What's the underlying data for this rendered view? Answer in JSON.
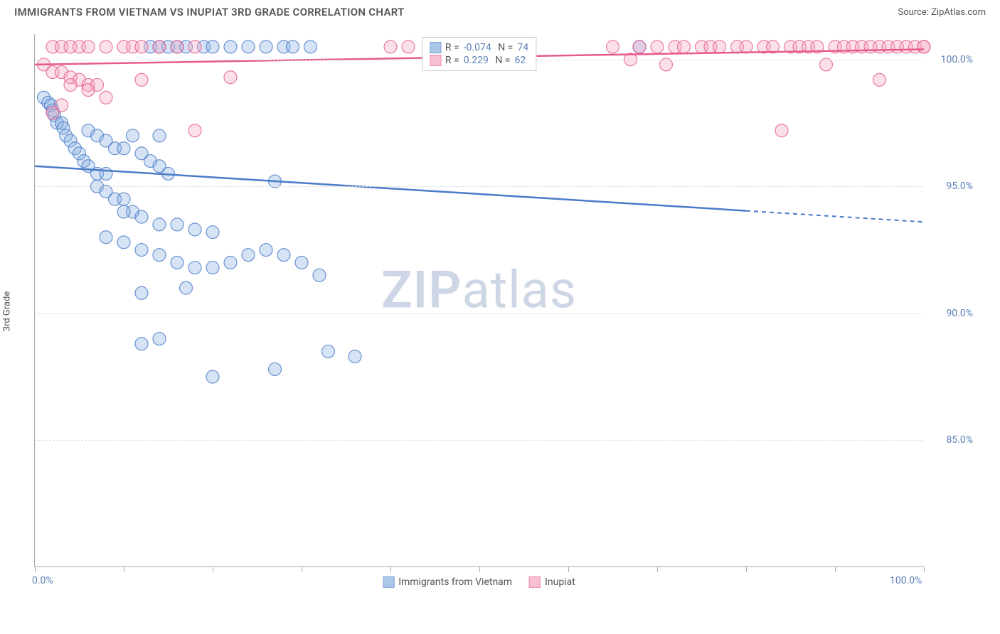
{
  "header": {
    "title": "IMMIGRANTS FROM VIETNAM VS INUPIAT 3RD GRADE CORRELATION CHART",
    "source": "Source: ZipAtlas.com"
  },
  "watermark": {
    "bold": "ZIP",
    "light": "atlas"
  },
  "chart": {
    "type": "scatter",
    "ylabel": "3rd Grade",
    "xlim": [
      0,
      100
    ],
    "ylim": [
      80,
      101
    ],
    "x_ticks": [
      0,
      10,
      20,
      30,
      40,
      50,
      60,
      70,
      80,
      90,
      100
    ],
    "y_gridlines": [
      85,
      90,
      95,
      100
    ],
    "y_tick_labels": [
      "85.0%",
      "90.0%",
      "95.0%",
      "100.0%"
    ],
    "x_axis_labels": [
      {
        "pos": 0,
        "text": "0.0%"
      },
      {
        "pos": 100,
        "text": "100.0%"
      }
    ],
    "background_color": "#ffffff",
    "grid_color": "#dddddd",
    "axis_color": "#aaaaaa",
    "label_color": "#5b7fb8",
    "marker_radius": 9,
    "marker_opacity": 0.35,
    "marker_stroke_opacity": 0.8,
    "series": [
      {
        "name": "Immigrants from Vietnam",
        "color_fill": "#87aee0",
        "color_stroke": "#4a7bc8",
        "R": "-0.074",
        "N": "74",
        "trend": {
          "y_start": 95.8,
          "y_end": 93.6,
          "solid_until_x": 80
        },
        "points": [
          [
            1,
            98.5
          ],
          [
            1.5,
            98.3
          ],
          [
            1.8,
            98.2
          ],
          [
            2,
            98.0
          ],
          [
            2.2,
            97.8
          ],
          [
            2.5,
            97.5
          ],
          [
            3,
            97.5
          ],
          [
            3.2,
            97.3
          ],
          [
            3.5,
            97.0
          ],
          [
            4,
            96.8
          ],
          [
            4.5,
            96.5
          ],
          [
            5,
            96.3
          ],
          [
            5.5,
            96.0
          ],
          [
            6,
            95.8
          ],
          [
            7,
            95.5
          ],
          [
            8,
            95.5
          ],
          [
            7,
            95.0
          ],
          [
            8,
            94.8
          ],
          [
            9,
            94.5
          ],
          [
            10,
            94.5
          ],
          [
            11,
            94.0
          ],
          [
            6,
            97.2
          ],
          [
            7,
            97.0
          ],
          [
            8,
            96.8
          ],
          [
            9,
            96.5
          ],
          [
            10,
            96.5
          ],
          [
            12,
            96.3
          ],
          [
            13,
            96.0
          ],
          [
            14,
            95.8
          ],
          [
            15,
            95.5
          ],
          [
            11,
            97.0
          ],
          [
            13,
            100.5
          ],
          [
            14,
            100.5
          ],
          [
            15,
            100.5
          ],
          [
            16,
            100.5
          ],
          [
            17,
            100.5
          ],
          [
            19,
            100.5
          ],
          [
            20,
            100.5
          ],
          [
            22,
            100.5
          ],
          [
            24,
            100.5
          ],
          [
            26,
            100.5
          ],
          [
            28,
            100.5
          ],
          [
            29,
            100.5
          ],
          [
            31,
            100.5
          ],
          [
            10,
            94.0
          ],
          [
            12,
            93.8
          ],
          [
            14,
            93.5
          ],
          [
            16,
            93.5
          ],
          [
            18,
            93.3
          ],
          [
            20,
            93.2
          ],
          [
            8,
            93.0
          ],
          [
            10,
            92.8
          ],
          [
            12,
            92.5
          ],
          [
            14,
            92.3
          ],
          [
            16,
            92.0
          ],
          [
            18,
            91.8
          ],
          [
            20,
            91.8
          ],
          [
            22,
            92.0
          ],
          [
            24,
            92.3
          ],
          [
            26,
            92.5
          ],
          [
            28,
            92.3
          ],
          [
            30,
            92.0
          ],
          [
            32,
            91.5
          ],
          [
            17,
            91.0
          ],
          [
            12,
            90.8
          ],
          [
            14,
            89.0
          ],
          [
            12,
            88.8
          ],
          [
            20,
            87.5
          ],
          [
            27,
            87.8
          ],
          [
            33,
            88.5
          ],
          [
            36,
            88.3
          ],
          [
            27,
            95.2
          ],
          [
            68,
            100.5
          ],
          [
            14,
            97.0
          ]
        ]
      },
      {
        "name": "Inupiat",
        "color_fill": "#f4a6c0",
        "color_stroke": "#e65a8f",
        "R": "0.229",
        "N": "62",
        "trend": {
          "y_start": 99.8,
          "y_end": 100.4,
          "solid_until_x": 100
        },
        "points": [
          [
            1,
            99.8
          ],
          [
            2,
            99.5
          ],
          [
            3,
            99.5
          ],
          [
            4,
            99.3
          ],
          [
            5,
            99.2
          ],
          [
            6,
            99.0
          ],
          [
            7,
            99.0
          ],
          [
            2,
            100.5
          ],
          [
            3,
            100.5
          ],
          [
            4,
            100.5
          ],
          [
            5,
            100.5
          ],
          [
            6,
            100.5
          ],
          [
            8,
            100.5
          ],
          [
            10,
            100.5
          ],
          [
            11,
            100.5
          ],
          [
            12,
            100.5
          ],
          [
            14,
            100.5
          ],
          [
            16,
            100.5
          ],
          [
            18,
            100.5
          ],
          [
            4,
            99.0
          ],
          [
            6,
            98.8
          ],
          [
            8,
            98.5
          ],
          [
            12,
            99.2
          ],
          [
            3,
            98.2
          ],
          [
            2,
            97.9
          ],
          [
            22,
            99.3
          ],
          [
            18,
            97.2
          ],
          [
            40,
            100.5
          ],
          [
            42,
            100.5
          ],
          [
            65,
            100.5
          ],
          [
            68,
            100.5
          ],
          [
            70,
            100.5
          ],
          [
            72,
            100.5
          ],
          [
            73,
            100.5
          ],
          [
            75,
            100.5
          ],
          [
            76,
            100.5
          ],
          [
            77,
            100.5
          ],
          [
            79,
            100.5
          ],
          [
            80,
            100.5
          ],
          [
            82,
            100.5
          ],
          [
            83,
            100.5
          ],
          [
            85,
            100.5
          ],
          [
            86,
            100.5
          ],
          [
            87,
            100.5
          ],
          [
            88,
            100.5
          ],
          [
            90,
            100.5
          ],
          [
            91,
            100.5
          ],
          [
            92,
            100.5
          ],
          [
            93,
            100.5
          ],
          [
            94,
            100.5
          ],
          [
            95,
            100.5
          ],
          [
            96,
            100.5
          ],
          [
            97,
            100.5
          ],
          [
            98,
            100.5
          ],
          [
            99,
            100.5
          ],
          [
            100,
            100.5
          ],
          [
            100,
            100.5
          ],
          [
            95,
            99.2
          ],
          [
            84,
            97.2
          ],
          [
            67,
            100.0
          ],
          [
            71,
            99.8
          ],
          [
            89,
            99.8
          ]
        ]
      }
    ]
  },
  "legend_bottom": [
    {
      "label": "Immigrants from Vietnam",
      "fill": "#87aee0",
      "stroke": "#4a7bc8"
    },
    {
      "label": "Inupiat",
      "fill": "#f4a6c0",
      "stroke": "#e65a8f"
    }
  ]
}
